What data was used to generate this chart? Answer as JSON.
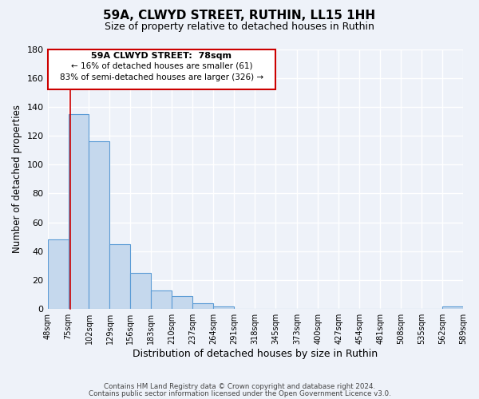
{
  "title": "59A, CLWYD STREET, RUTHIN, LL15 1HH",
  "subtitle": "Size of property relative to detached houses in Ruthin",
  "xlabel": "Distribution of detached houses by size in Ruthin",
  "ylabel": "Number of detached properties",
  "bar_edges": [
    48,
    75,
    102,
    129,
    156,
    183,
    210,
    237,
    264,
    291,
    318,
    345,
    373,
    400,
    427,
    454,
    481,
    508,
    535,
    562,
    589
  ],
  "bar_heights": [
    48,
    135,
    116,
    45,
    25,
    13,
    9,
    4,
    2,
    0,
    0,
    0,
    0,
    0,
    0,
    0,
    0,
    0,
    0,
    2
  ],
  "bar_color": "#c5d8ed",
  "bar_edgecolor": "#5b9bd5",
  "ylim": [
    0,
    180
  ],
  "yticks": [
    0,
    20,
    40,
    60,
    80,
    100,
    120,
    140,
    160,
    180
  ],
  "property_line_x": 78,
  "property_line_color": "#cc0000",
  "annotation_text_line1": "59A CLWYD STREET:  78sqm",
  "annotation_text_line2": "← 16% of detached houses are smaller (61)",
  "annotation_text_line3": "83% of semi-detached houses are larger (326) →",
  "annotation_box_color": "#cc0000",
  "footer_line1": "Contains HM Land Registry data © Crown copyright and database right 2024.",
  "footer_line2": "Contains public sector information licensed under the Open Government Licence v3.0.",
  "tick_labels": [
    "48sqm",
    "75sqm",
    "102sqm",
    "129sqm",
    "156sqm",
    "183sqm",
    "210sqm",
    "237sqm",
    "264sqm",
    "291sqm",
    "318sqm",
    "345sqm",
    "373sqm",
    "400sqm",
    "427sqm",
    "454sqm",
    "481sqm",
    "508sqm",
    "535sqm",
    "562sqm",
    "589sqm"
  ],
  "background_color": "#eef2f9",
  "grid_color": "#ffffff"
}
